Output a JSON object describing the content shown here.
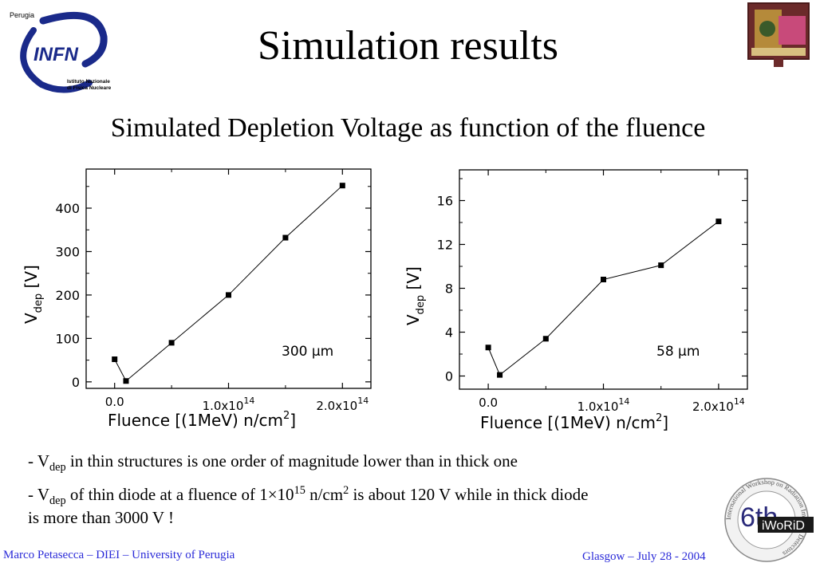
{
  "title": "Simulation results",
  "subtitle": "Simulated Depletion Voltage as function of the fluence",
  "logos": {
    "infn": {
      "city": "Perugia",
      "name": "INFN",
      "line1": "Istituto Nazionale",
      "line2": "di Fisica Nucleare"
    },
    "workshop": {
      "number": "6th",
      "name": "iWoRiD",
      "ring_text": "International Workshop on Radiation Imaging Detectors"
    }
  },
  "chart_data": [
    {
      "type": "line",
      "annotation": "300 µm",
      "xlabel": "Fluence [(1MeV) n/cm²]",
      "ylabel": "V_dep [V]",
      "xlim": [
        -25000000000000.0,
        225000000000000.0
      ],
      "ylim": [
        -15,
        490
      ],
      "xticks": [
        {
          "v": 0,
          "label": "0.0"
        },
        {
          "v": 100000000000000.0,
          "label": "1.0x10",
          "exp": "14"
        },
        {
          "v": 200000000000000.0,
          "label": "2.0x10",
          "exp": "14"
        }
      ],
      "yticks": [
        0,
        100,
        200,
        300,
        400
      ],
      "x": [
        0,
        10000000000000.0,
        50000000000000.0,
        100000000000000.0,
        150000000000000.0,
        200000000000000.0
      ],
      "y": [
        52,
        2,
        90,
        200,
        332,
        452
      ]
    },
    {
      "type": "line",
      "annotation": "58 µm",
      "xlabel": "Fluence [(1MeV) n/cm²]",
      "ylabel": "V_dep [V]",
      "xlim": [
        -25000000000000.0,
        225000000000000.0
      ],
      "ylim": [
        -1.2,
        18.8
      ],
      "xticks": [
        {
          "v": 0,
          "label": "0.0"
        },
        {
          "v": 100000000000000.0,
          "label": "1.0x10",
          "exp": "14"
        },
        {
          "v": 200000000000000.0,
          "label": "2.0x10",
          "exp": "14"
        }
      ],
      "yticks": [
        0,
        4,
        8,
        12,
        16
      ],
      "x": [
        0,
        10000000000000.0,
        50000000000000.0,
        100000000000000.0,
        150000000000000.0,
        200000000000000.0
      ],
      "y": [
        2.6,
        0.1,
        3.4,
        8.8,
        10.1,
        14.1
      ]
    }
  ],
  "notes": {
    "n1": {
      "pre": "- V",
      "sub": "dep",
      "post": " in thin structures is one order of magnitude lower than in thick one"
    },
    "n2": {
      "pre": "- V",
      "sub": "dep",
      "mid": " of thin diode at a fluence of 1×10",
      "sup": "15",
      "mid2": " n/cm",
      "sup2": "2",
      "post": " is about 120 V while in thick diode",
      "line2": "is more than 3000 V !"
    }
  },
  "footer": {
    "left": "Marco Petasecca – DIEI – University of Perugia",
    "right": "Glasgow – July 28 - 2004"
  }
}
